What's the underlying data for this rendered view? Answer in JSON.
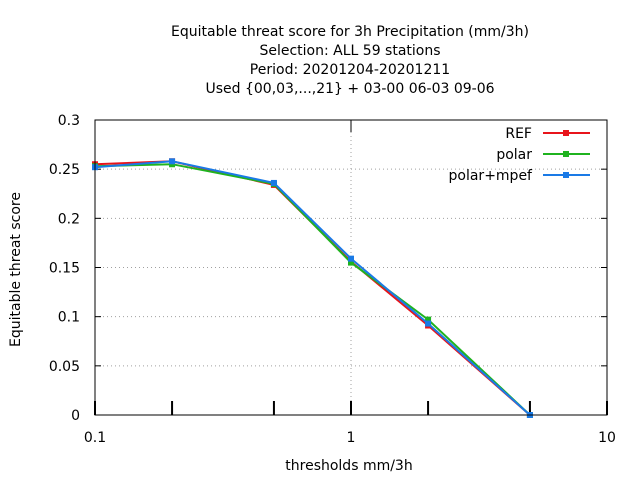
{
  "chart_data": {
    "type": "line",
    "title_lines": [
      "Equitable threat score  for 3h Precipitation (mm/3h)",
      "Selection: ALL     59 stations",
      "Period: 20201204-20201211",
      "Used {00,03,...,21} + 03-00 06-03 09-06"
    ],
    "xlabel": "thresholds mm/3h",
    "ylabel": "Equitable threat score",
    "x_scale": "log",
    "xlim": [
      0.1,
      10
    ],
    "ylim": [
      0,
      0.3
    ],
    "x_ticks": [
      {
        "value": 0.1,
        "label": "0.1"
      },
      {
        "value": 1,
        "label": "1"
      },
      {
        "value": 10,
        "label": "10"
      }
    ],
    "y_ticks": [
      {
        "value": 0,
        "label": "0"
      },
      {
        "value": 0.05,
        "label": "0.05"
      },
      {
        "value": 0.1,
        "label": "0.1"
      },
      {
        "value": 0.15,
        "label": "0.15"
      },
      {
        "value": 0.2,
        "label": "0.2"
      },
      {
        "value": 0.25,
        "label": "0.25"
      },
      {
        "value": 0.3,
        "label": "0.3"
      }
    ],
    "grid": true,
    "legend_position": "top-right",
    "x": [
      0.1,
      0.2,
      0.5,
      1,
      2,
      5
    ],
    "series": [
      {
        "name": "REF",
        "color": "#e8141b",
        "values": [
          0.255,
          0.258,
          0.234,
          0.156,
          0.091,
          0.0
        ]
      },
      {
        "name": "polar",
        "color": "#1fb31f",
        "values": [
          0.253,
          0.255,
          0.235,
          0.155,
          0.097,
          0.0
        ]
      },
      {
        "name": "polar+mpef",
        "color": "#1a7ae6",
        "values": [
          0.252,
          0.258,
          0.236,
          0.159,
          0.093,
          0.0
        ]
      }
    ]
  }
}
